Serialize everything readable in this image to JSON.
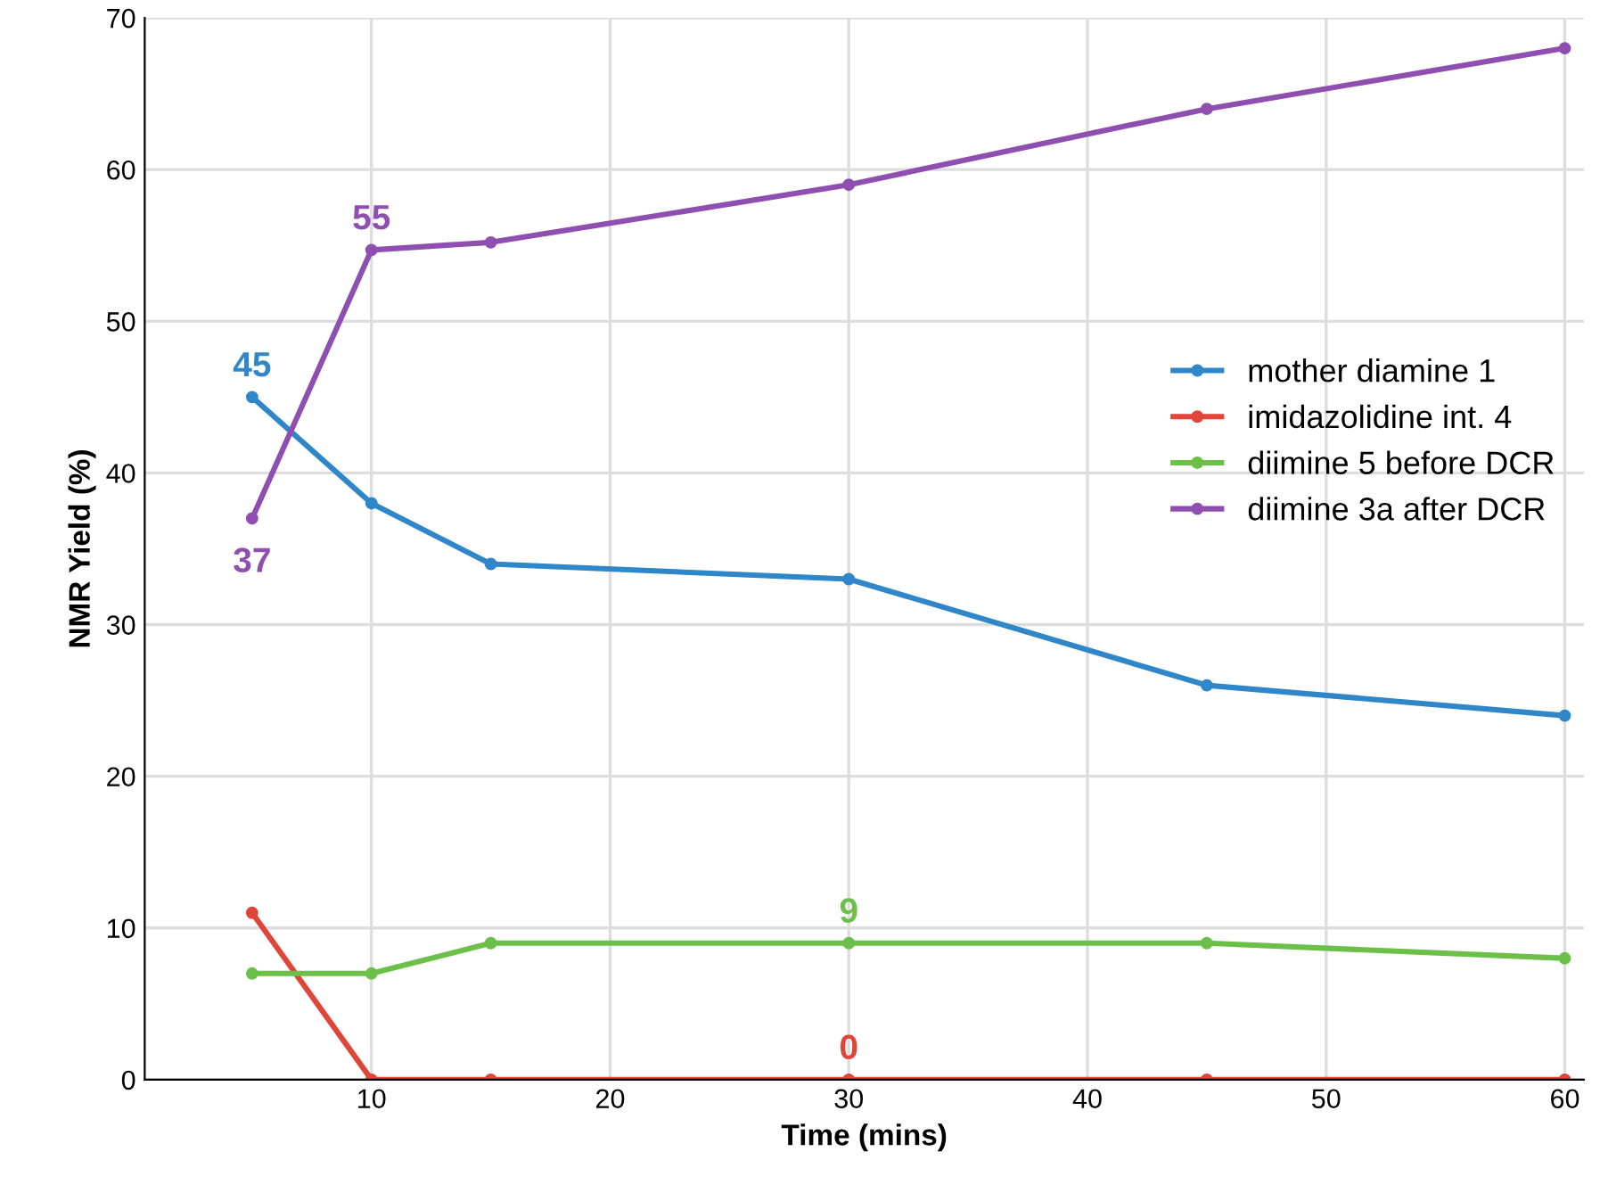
{
  "chart_data": {
    "type": "line",
    "xlabel": "Time (mins)",
    "ylabel": "NMR Yield (%)",
    "x": [
      5,
      10,
      15,
      30,
      45,
      60
    ],
    "series": [
      {
        "name": "mother diamine 1",
        "color": "#2f86c8",
        "values": [
          45,
          38,
          34,
          33,
          26,
          24
        ]
      },
      {
        "name": "imidazolidine int. 4",
        "color": "#e0453a",
        "values": [
          11,
          0,
          0,
          0,
          0,
          0
        ]
      },
      {
        "name": "diimine 5 before DCR",
        "color": "#6cc04a",
        "values": [
          7,
          7,
          9,
          9,
          9,
          8
        ]
      },
      {
        "name": "diimine 3a after DCR",
        "color": "#8e4fb0",
        "values": [
          37,
          54.7,
          55.2,
          59,
          64,
          68
        ]
      }
    ],
    "annotations": [
      {
        "text": "45",
        "x": 5,
        "y": 45
      },
      {
        "text": "37",
        "x": 5,
        "y": 37
      },
      {
        "text": "55",
        "x": 10,
        "y": 54.7
      },
      {
        "text": "9",
        "x": 30,
        "y": 9
      },
      {
        "text": "0",
        "x": 30,
        "y": 0
      }
    ],
    "xlim": [
      0.5,
      60.8
    ],
    "ylim": [
      0,
      70
    ],
    "xticks": [
      10,
      20,
      30,
      40,
      50,
      60
    ],
    "yticks": [
      0,
      10,
      20,
      30,
      40,
      50,
      60,
      70
    ],
    "grid": true,
    "legend": "right",
    "marker": "circle",
    "line_style": "solid"
  }
}
